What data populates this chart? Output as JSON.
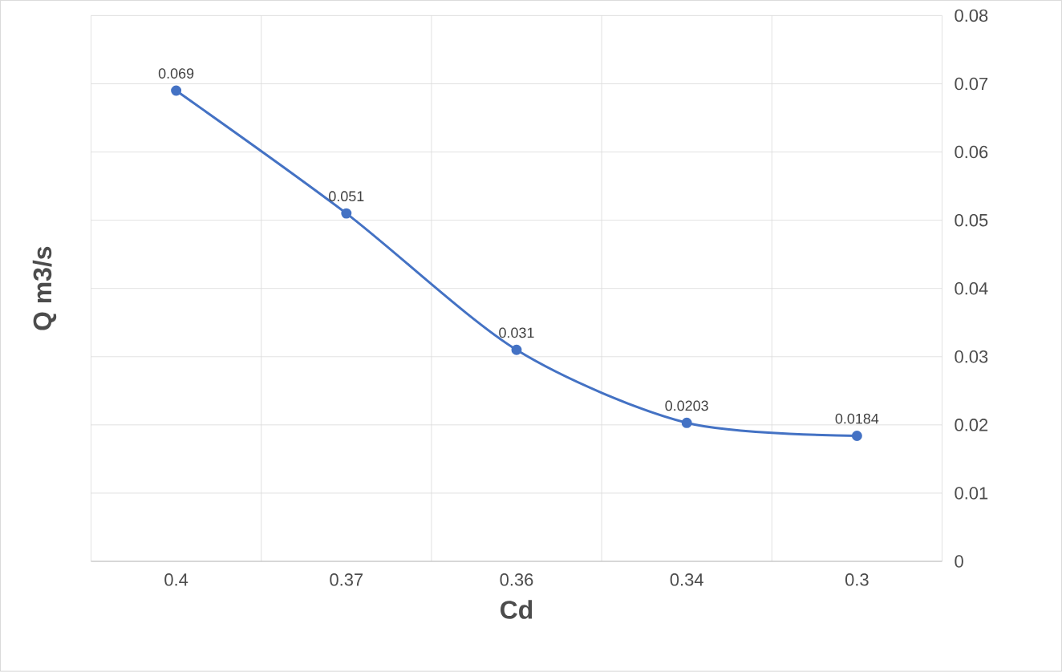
{
  "chart_data": {
    "type": "line",
    "xlabel": "Cd",
    "ylabel": "Q m3/s",
    "categories": [
      "0.4",
      "0.37",
      "0.36",
      "0.34",
      "0.3"
    ],
    "values": [
      0.069,
      0.051,
      0.031,
      0.0203,
      0.0184
    ],
    "color": "#4472c4",
    "marker": "circle",
    "line_style": "solid",
    "data_labels": true,
    "grid": true,
    "ylim": [
      0,
      0.08
    ],
    "yticks": [
      0,
      0.01,
      0.02,
      0.03,
      0.04,
      0.05,
      0.06,
      0.07,
      0.08
    ]
  }
}
